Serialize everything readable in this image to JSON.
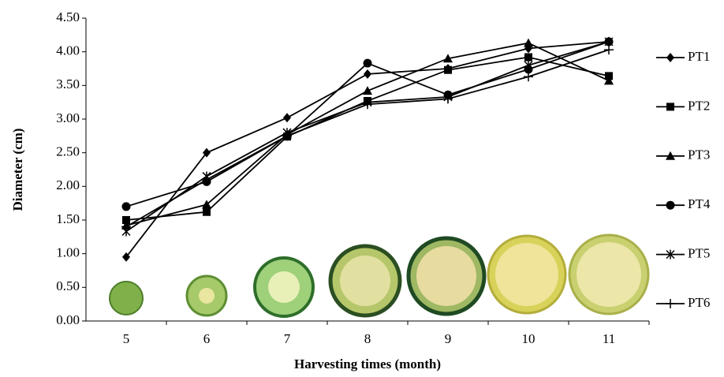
{
  "chart_data": {
    "type": "line",
    "y_label": "Diameter (cm)",
    "x_label": "Harvesting times (month)",
    "categories": [
      "5",
      "6",
      "7",
      "8",
      "9",
      "10",
      "11"
    ],
    "ylim": [
      0,
      4.5
    ],
    "yticks": [
      {
        "value": 0,
        "label": "0.00"
      },
      {
        "value": 0.5,
        "label": "0.50"
      },
      {
        "value": 1,
        "label": "1.00"
      },
      {
        "value": 1.5,
        "label": "1.50"
      },
      {
        "value": 2,
        "label": "2.00"
      },
      {
        "value": 2.5,
        "label": "2.50"
      },
      {
        "value": 3,
        "label": "3.00"
      },
      {
        "value": 3.5,
        "label": "3.50"
      },
      {
        "value": 4,
        "label": "4.00"
      },
      {
        "value": 4.5,
        "label": "4.50"
      }
    ],
    "legend": "right",
    "series": [
      {
        "name": "PT1",
        "color": "#000000",
        "marker": "diamond",
        "values": [
          0.95,
          2.5,
          3.02,
          3.67,
          3.75,
          4.05,
          4.15
        ]
      },
      {
        "name": "PT2",
        "color": "#000000",
        "marker": "square",
        "values": [
          1.5,
          1.62,
          2.74,
          3.27,
          3.73,
          3.92,
          3.64
        ]
      },
      {
        "name": "PT3",
        "color": "#000000",
        "marker": "triangle",
        "values": [
          1.42,
          1.73,
          2.77,
          3.42,
          3.9,
          4.13,
          3.57
        ]
      },
      {
        "name": "PT4",
        "color": "#000000",
        "marker": "circle",
        "values": [
          1.7,
          2.07,
          2.75,
          3.83,
          3.36,
          3.74,
          4.15
        ]
      },
      {
        "name": "PT5",
        "color": "#000000",
        "marker": "star",
        "values": [
          1.33,
          2.15,
          2.8,
          3.25,
          3.33,
          3.8,
          4.15
        ]
      },
      {
        "name": "PT6",
        "color": "#000000",
        "marker": "plus",
        "values": [
          1.4,
          2.1,
          2.75,
          3.22,
          3.3,
          3.63,
          4.03
        ]
      }
    ]
  }
}
